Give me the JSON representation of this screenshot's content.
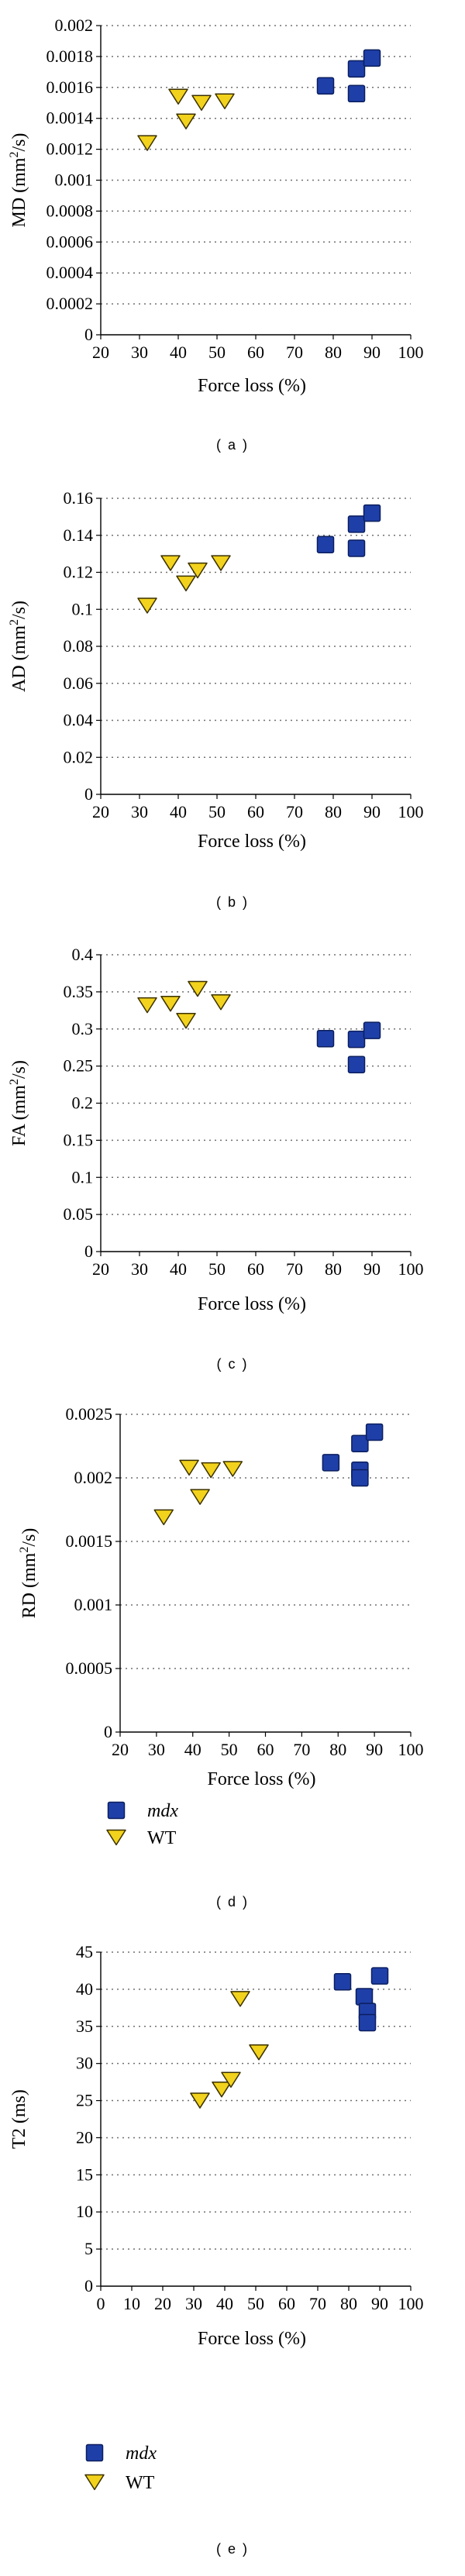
{
  "legend": {
    "mdx": "mdx",
    "wt": "WT"
  },
  "colors": {
    "mdx": "#1f3fa8",
    "mdx_stroke": "#0b1f5e",
    "wt": "#f2d21c",
    "wt_stroke": "#3a3000",
    "grid": "#707070"
  },
  "chart_data": [
    {
      "panel_label": "( a )",
      "type": "scatter",
      "xlabel": "Force loss (%)",
      "ylabel": "MD (mm²/s)",
      "ylabel_parts": [
        "MD (mm",
        "2",
        "/s)"
      ],
      "xlim": [
        20,
        100
      ],
      "ylim": [
        0,
        0.002
      ],
      "xticks": [
        "20",
        "30",
        "40",
        "50",
        "60",
        "70",
        "80",
        "90",
        "100"
      ],
      "yticks": [
        "0",
        "0.0002",
        "0.0004",
        "0.0006",
        "0.0008",
        "0.001",
        "0.0012",
        "0.0014",
        "0.0016",
        "0.0018",
        "0.002"
      ],
      "grid": true,
      "legend_shown": false,
      "series": [
        {
          "name": "mdx",
          "marker": "square",
          "x": [
            78,
            86,
            86,
            90
          ],
          "y": [
            0.00161,
            0.00172,
            0.00156,
            0.00179
          ]
        },
        {
          "name": "WT",
          "marker": "triangle-down",
          "x": [
            32,
            40,
            42,
            46,
            52
          ],
          "y": [
            0.00124,
            0.00154,
            0.00138,
            0.0015,
            0.00151
          ]
        }
      ]
    },
    {
      "panel_label": "( b )",
      "type": "scatter",
      "xlabel": "Force loss (%)",
      "ylabel": "AD (mm²/s)",
      "ylabel_parts": [
        "AD (mm",
        "2",
        "/s)"
      ],
      "xlim": [
        20,
        100
      ],
      "ylim": [
        0,
        0.16
      ],
      "xticks": [
        "20",
        "30",
        "40",
        "50",
        "60",
        "70",
        "80",
        "90",
        "100"
      ],
      "yticks": [
        "0",
        "0.02",
        "0.04",
        "0.06",
        "0.08",
        "0.1",
        "0.12",
        "0.14",
        "0.16"
      ],
      "grid": true,
      "legend_shown": false,
      "series": [
        {
          "name": "mdx",
          "marker": "square",
          "x": [
            78,
            86,
            86,
            90
          ],
          "y": [
            0.135,
            0.146,
            0.133,
            0.152
          ]
        },
        {
          "name": "WT",
          "marker": "triangle-down",
          "x": [
            32,
            38,
            42,
            45,
            51
          ],
          "y": [
            0.102,
            0.125,
            0.114,
            0.121,
            0.125
          ]
        }
      ]
    },
    {
      "panel_label": "( c )",
      "type": "scatter",
      "xlabel": "Force loss (%)",
      "ylabel": "FA (mm²/s)",
      "ylabel_parts": [
        "FA (mm",
        "2",
        "/s)"
      ],
      "xlim": [
        20,
        100
      ],
      "ylim": [
        0,
        0.4
      ],
      "xticks": [
        "20",
        "30",
        "40",
        "50",
        "60",
        "70",
        "80",
        "90",
        "100"
      ],
      "yticks": [
        "0",
        "0.05",
        "0.1",
        "0.15",
        "0.2",
        "0.25",
        "0.3",
        "0.35",
        "0.4"
      ],
      "grid": true,
      "legend_shown": false,
      "series": [
        {
          "name": "mdx",
          "marker": "square",
          "x": [
            78,
            86,
            86,
            90
          ],
          "y": [
            0.287,
            0.286,
            0.252,
            0.298
          ]
        },
        {
          "name": "WT",
          "marker": "triangle-down",
          "x": [
            32,
            38,
            42,
            45,
            51
          ],
          "y": [
            0.332,
            0.334,
            0.311,
            0.354,
            0.336
          ]
        }
      ]
    },
    {
      "panel_label": "( d )",
      "type": "scatter",
      "xlabel": "Force loss (%)",
      "ylabel": "RD (mm²/s)",
      "ylabel_parts": [
        "RD (mm",
        "2",
        "/s)"
      ],
      "xlim": [
        20,
        100
      ],
      "ylim": [
        0,
        0.0025
      ],
      "xticks": [
        "20",
        "30",
        "40",
        "50",
        "60",
        "70",
        "80",
        "90",
        "100"
      ],
      "yticks": [
        "0",
        "0.0005",
        "0.001",
        "0.0015",
        "0.002",
        "0.0025"
      ],
      "grid": true,
      "legend_shown": true,
      "series": [
        {
          "name": "mdx",
          "marker": "square",
          "x": [
            78,
            86,
            86,
            86,
            90
          ],
          "y": [
            0.00212,
            0.00227,
            0.00206,
            0.002,
            0.00236
          ]
        },
        {
          "name": "WT",
          "marker": "triangle-down",
          "x": [
            32,
            39,
            42,
            45,
            51
          ],
          "y": [
            0.00169,
            0.00208,
            0.00185,
            0.00206,
            0.00207
          ]
        }
      ]
    },
    {
      "panel_label": "( e )",
      "type": "scatter",
      "xlabel": "Force loss (%)",
      "ylabel": "T2 (ms)",
      "ylabel_parts": [
        "T2 (ms)",
        "",
        ""
      ],
      "xlim": [
        0,
        100
      ],
      "ylim": [
        0,
        45
      ],
      "xticks": [
        "0",
        "10",
        "20",
        "30",
        "40",
        "50",
        "60",
        "70",
        "80",
        "90",
        "100"
      ],
      "yticks": [
        "0",
        "5",
        "10",
        "15",
        "20",
        "25",
        "30",
        "35",
        "40",
        "45"
      ],
      "grid": true,
      "legend_shown": true,
      "series": [
        {
          "name": "mdx",
          "marker": "square",
          "x": [
            78,
            85,
            86,
            86,
            90
          ],
          "y": [
            41,
            39,
            37,
            35.5,
            41.8
          ]
        },
        {
          "name": "WT",
          "marker": "triangle-down",
          "x": [
            32,
            39,
            42,
            45,
            51
          ],
          "y": [
            25,
            26.5,
            27.8,
            38.7,
            31.5
          ]
        }
      ]
    }
  ]
}
